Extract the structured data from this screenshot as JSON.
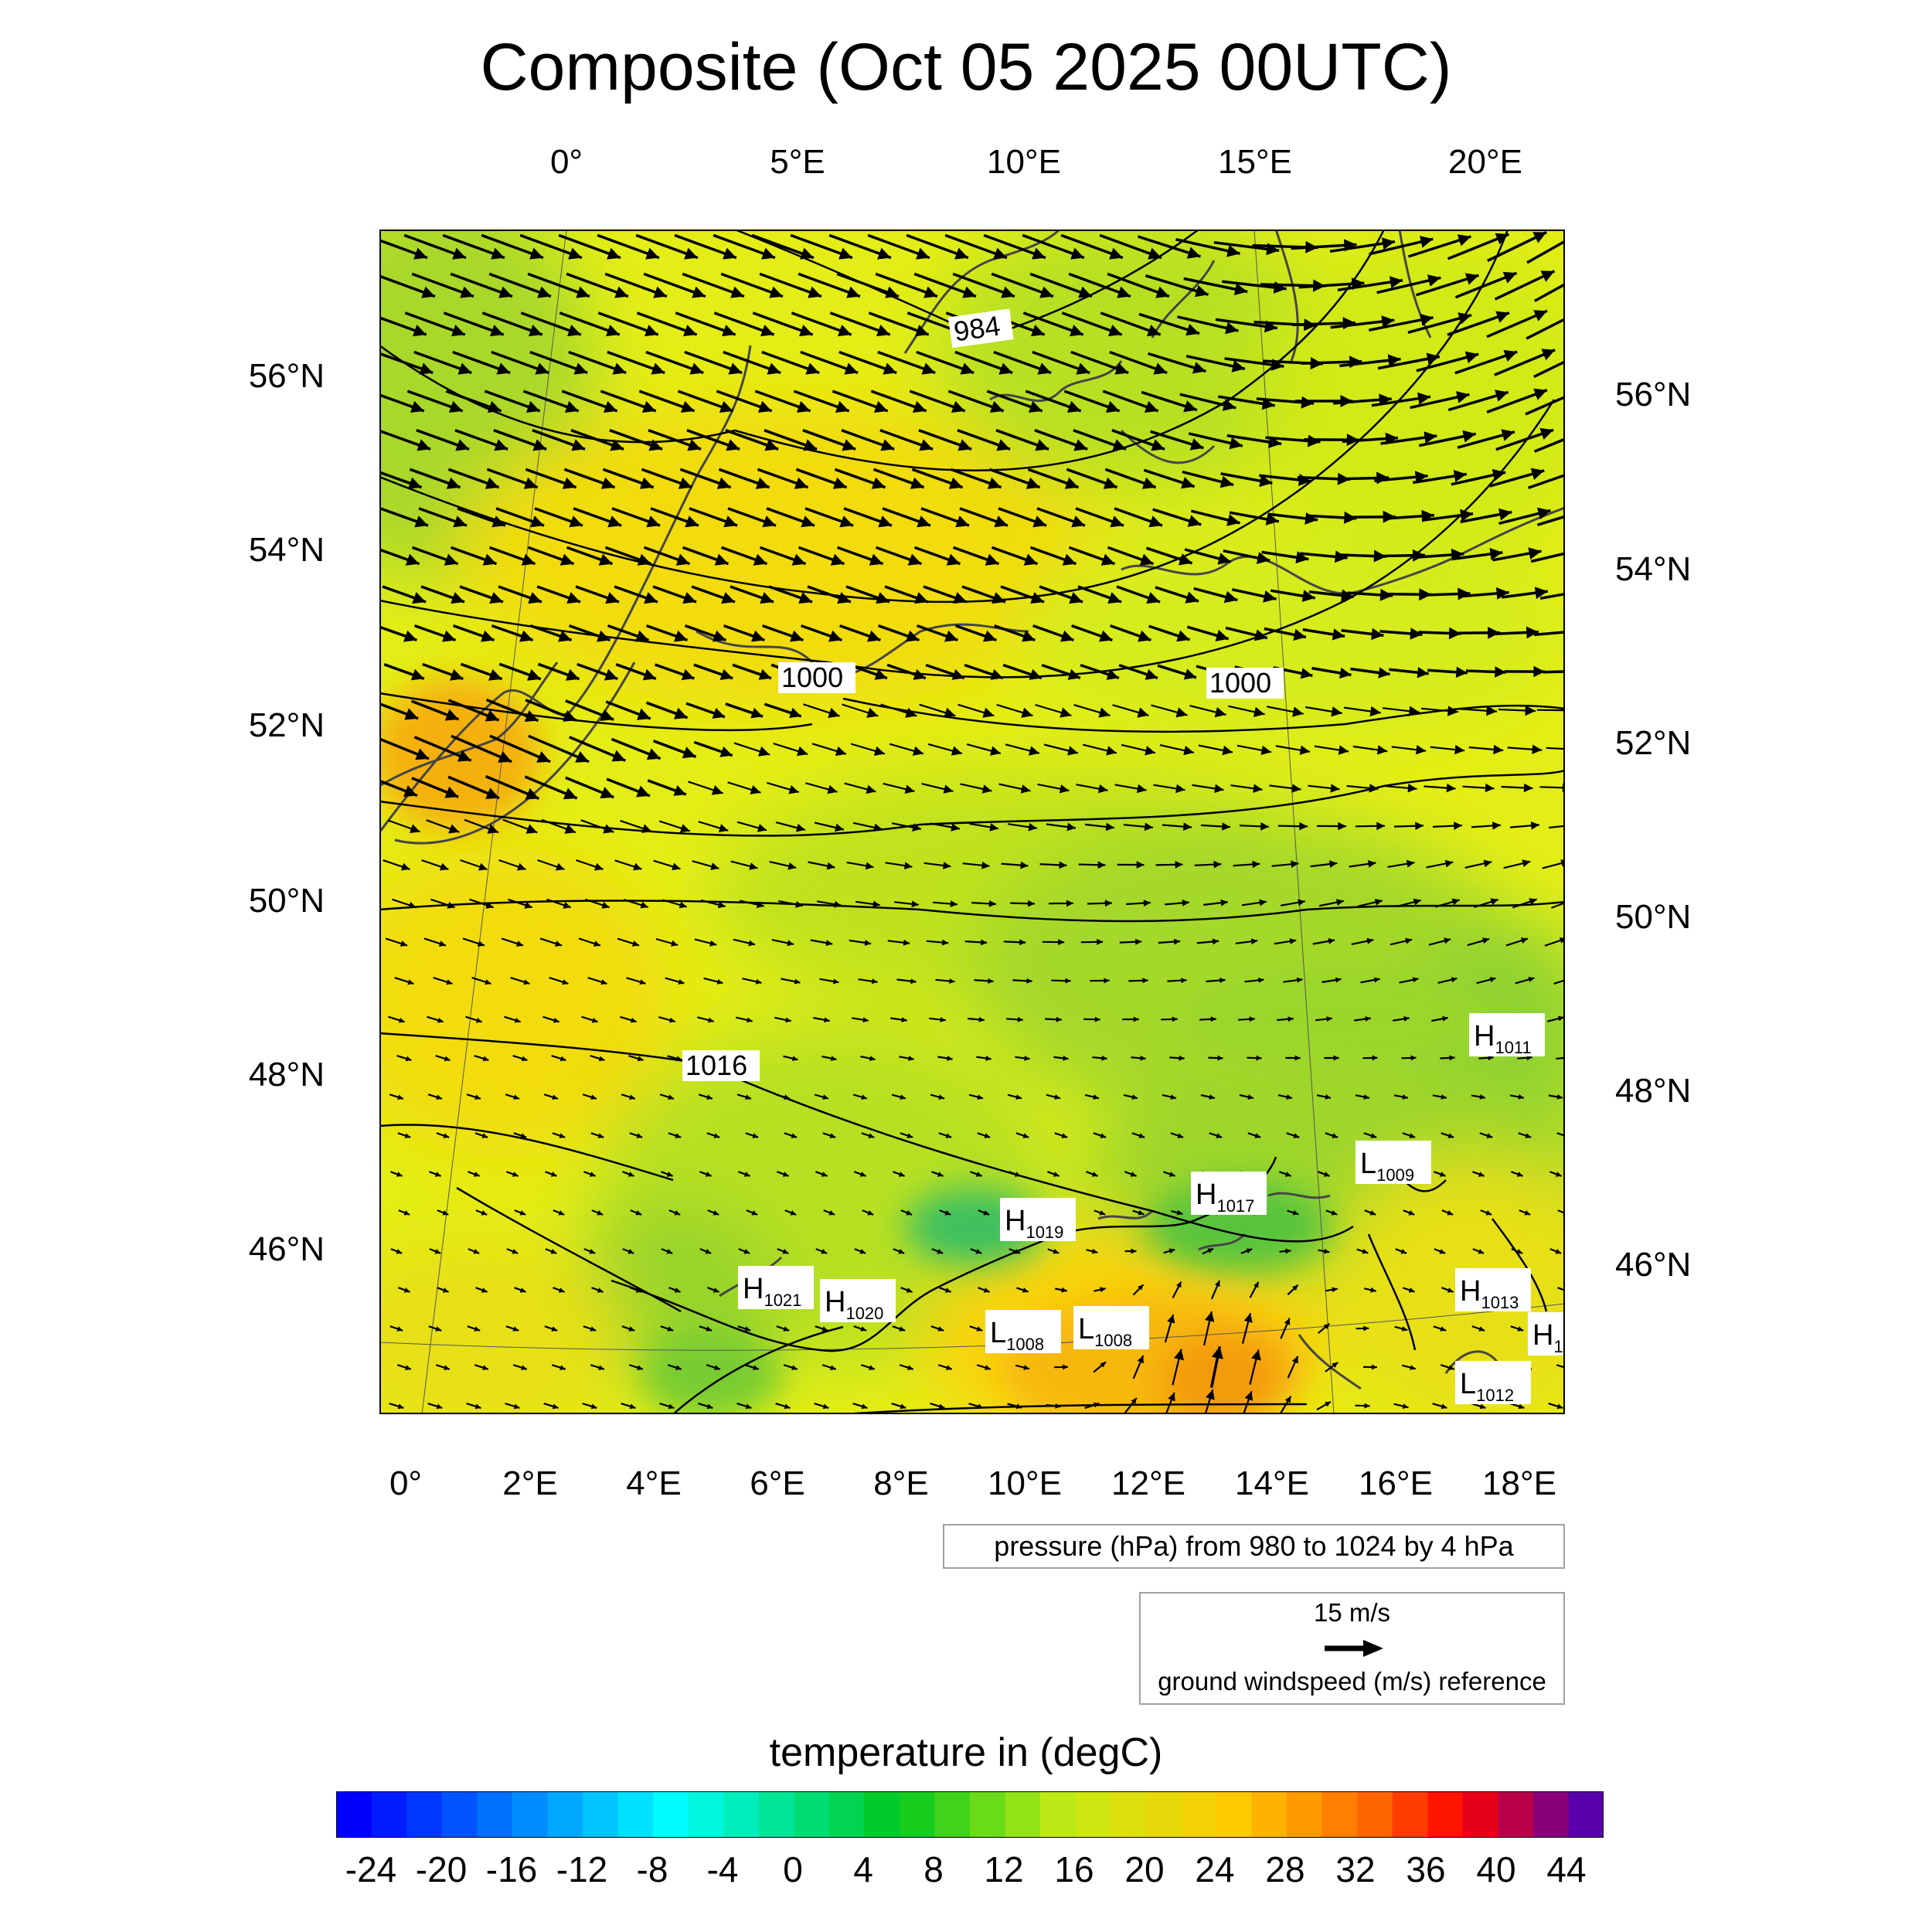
{
  "title": "Composite (Oct 05 2025 00UTC)",
  "axes": {
    "top_labels": [
      "0°",
      "5°E",
      "10°E",
      "15°E",
      "20°E"
    ],
    "bottom_labels": [
      "0°",
      "2°E",
      "4°E",
      "6°E",
      "8°E",
      "10°E",
      "12°E",
      "14°E",
      "16°E",
      "18°E"
    ],
    "left_labels": [
      "56°N",
      "54°N",
      "52°N",
      "50°N",
      "48°N",
      "46°N"
    ],
    "right_labels": [
      "56°N",
      "54°N",
      "52°N",
      "50°N",
      "48°N",
      "46°N"
    ]
  },
  "contour_labels": [
    "984",
    "1000",
    "1000",
    "1016"
  ],
  "pressure_centers": [
    {
      "letter": "H",
      "value": "1011"
    },
    {
      "letter": "L",
      "value": "1009"
    },
    {
      "letter": "H",
      "value": "1017"
    },
    {
      "letter": "H",
      "value": "1019"
    },
    {
      "letter": "H",
      "value": "1021"
    },
    {
      "letter": "H",
      "value": "1020"
    },
    {
      "letter": "L",
      "value": "1008"
    },
    {
      "letter": "L",
      "value": "1008"
    },
    {
      "letter": "H",
      "value": "1013"
    },
    {
      "letter": "L",
      "value": "1012"
    },
    {
      "letter": "H",
      "value": "1"
    }
  ],
  "pressure_info": "pressure (hPa) from 980 to 1024 by 4 hPa",
  "wind_reference": {
    "speed_label": "15 m/s",
    "caption": "ground windspeed (m/s) reference"
  },
  "colorbar": {
    "title": "temperature in (degC)",
    "min": -26,
    "max": 46,
    "step": 2,
    "tick_labels": [
      "-24",
      "-20",
      "-16",
      "-12",
      "-8",
      "-4",
      "0",
      "4",
      "8",
      "12",
      "16",
      "20",
      "24",
      "28",
      "32",
      "36",
      "40",
      "44"
    ]
  },
  "colors": {
    "field_cold": "#7ccf2e",
    "field_mid": "#d8ee18",
    "field_warm": "#fbd00a",
    "field_hot": "#f5a80a",
    "arrow": "#000000",
    "coast": "#444444"
  }
}
